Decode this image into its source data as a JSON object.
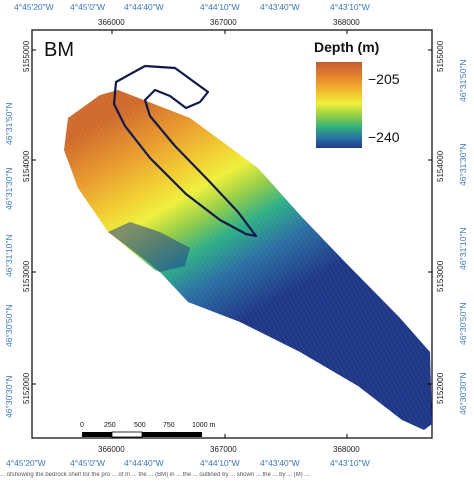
{
  "panel_label": "BM",
  "legend": {
    "title": "Depth (m)",
    "max_label": "−205",
    "min_label": "−240",
    "depth_shallow_m": -205,
    "depth_deep_m": -240,
    "colors": [
      "#c55a30",
      "#e8862d",
      "#f2c22e",
      "#f0ee3a",
      "#96cf45",
      "#2fb07c",
      "#2a73a2",
      "#213a8a"
    ]
  },
  "lon_labels": [
    "4°45'20\"W",
    "4°45'0\"W",
    "4°44'40\"W",
    "4°44'10\"W",
    "4°43'40\"W",
    "4°43'10\"W"
  ],
  "lat_labels": [
    "46°31'50\"N",
    "46°31'30\"N",
    "46°31'10\"N",
    "46°30'50\"N",
    "46°30'30\"N"
  ],
  "easting_labels": [
    "366000",
    "367000",
    "368000"
  ],
  "northing_labels": [
    "5155000",
    "5154000",
    "5153000",
    "5152000"
  ],
  "scale_bar": {
    "labels": [
      "0",
      "250",
      "500",
      "750",
      "1000 m"
    ]
  },
  "caption": "... ofshowing the bedrock shelf for the pro ... of m ... the ... (BM) in ... the ... outlined by ... shown ... the ... by ... (M) ..."
}
